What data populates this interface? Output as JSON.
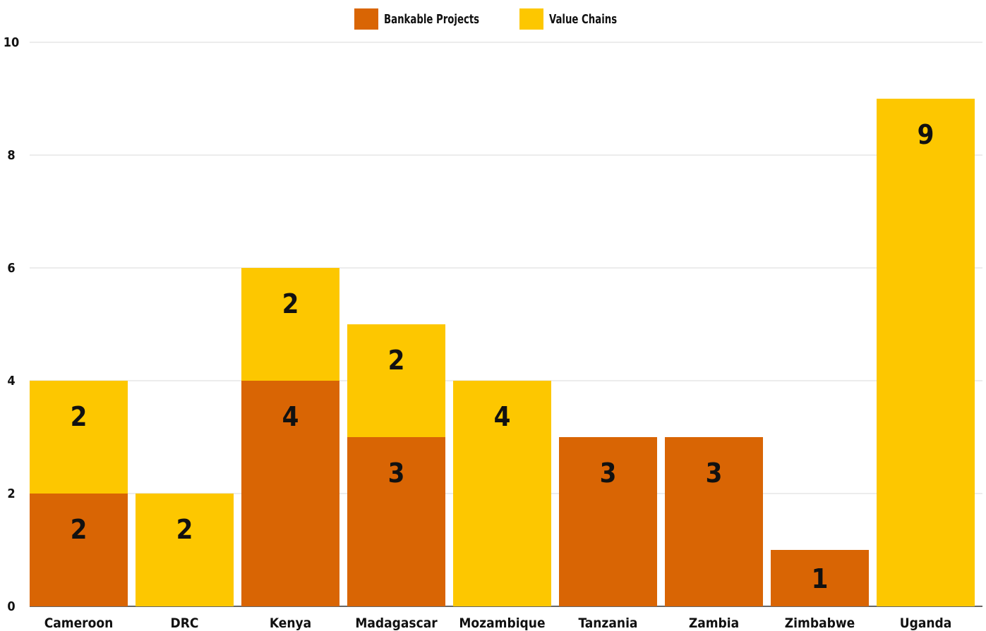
{
  "chart_data": {
    "type": "bar",
    "stacked": true,
    "categories": [
      "Cameroon",
      "DRC",
      "Kenya",
      "Madagascar",
      "Mozambique",
      "Tanzania",
      "Zambia",
      "Zimbabwe",
      "Uganda"
    ],
    "series": [
      {
        "name": "Bankable Projects",
        "color": "#d96504",
        "values": [
          2,
          0,
          4,
          3,
          0,
          3,
          3,
          1,
          0
        ]
      },
      {
        "name": "Value Chains",
        "color": "#fdc700",
        "values": [
          2,
          2,
          2,
          2,
          4,
          0,
          0,
          0,
          9
        ]
      }
    ],
    "ylim": [
      0,
      10
    ],
    "yticks": [
      0,
      2,
      4,
      6,
      8,
      10
    ],
    "grid": true,
    "legend_position": "top-center",
    "data_labels": true
  }
}
